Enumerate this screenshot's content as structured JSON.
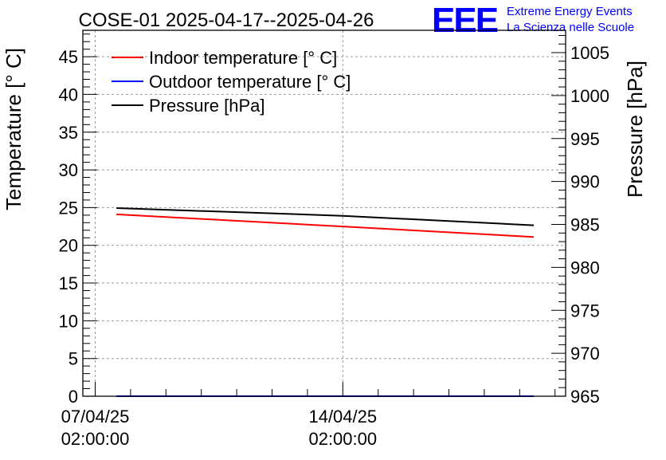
{
  "logo": {
    "mark": "EEE",
    "line1": "Extreme Energy Events",
    "line2": "La Scienza nelle Scuole",
    "color": "#0000ff"
  },
  "chart_data": {
    "type": "line",
    "title": "COSE-01 2025-04-17--2025-04-26",
    "ylabel": "Temperature [° C]",
    "y2label": "Pressure [hPa]",
    "xlabel": "",
    "xlim": [
      6.65,
      20.3
    ],
    "ylim": [
      0,
      48.5
    ],
    "y2lim": [
      965,
      1007.6
    ],
    "x_unit": "days since 2025-04-01",
    "x_ticks": [
      {
        "value": 7,
        "line1": "07/04/25",
        "line2": "02:00:00"
      },
      {
        "value": 14,
        "line1": "14/04/25",
        "line2": "02:00:00"
      }
    ],
    "y_ticks": [
      0,
      5,
      10,
      15,
      20,
      25,
      30,
      35,
      40,
      45
    ],
    "y2_ticks": [
      965,
      970,
      975,
      980,
      985,
      990,
      995,
      1000,
      1005
    ],
    "grid": true,
    "legend_position": "top-left",
    "series": [
      {
        "name": "Indoor temperature [° C]",
        "axis": "left",
        "color": "#ff0000",
        "x": [
          7.6,
          14.0,
          19.4
        ],
        "values": [
          24.1,
          22.5,
          21.1
        ]
      },
      {
        "name": "Outdoor temperature [° C]",
        "axis": "left",
        "color": "#0000ff",
        "x": [
          7.6,
          14.0,
          19.4
        ],
        "values": [
          0.0,
          0.0,
          0.0
        ]
      },
      {
        "name": "Pressure [hPa]",
        "axis": "right",
        "color": "#000000",
        "x": [
          7.6,
          14.0,
          19.4
        ],
        "values": [
          986.9,
          986.0,
          984.9
        ]
      }
    ]
  }
}
